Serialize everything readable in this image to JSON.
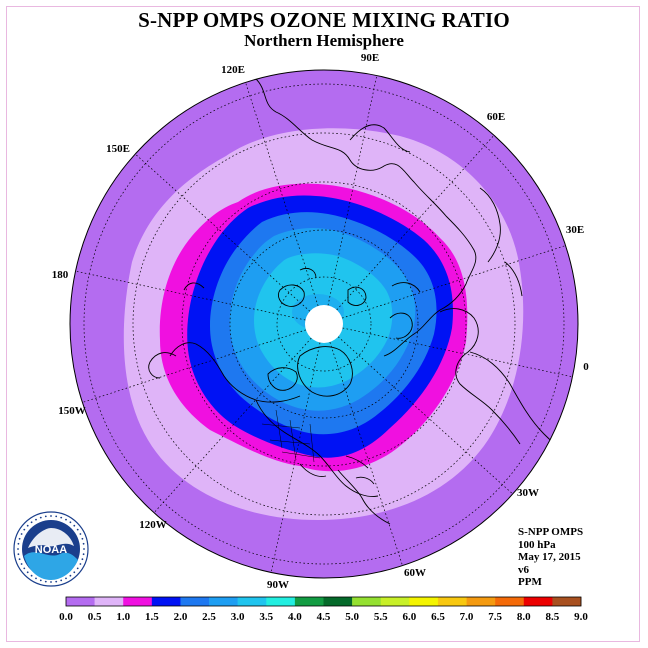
{
  "title": "S-NPP OMPS OZONE MIXING RATIO",
  "subtitle": "Northern Hemisphere",
  "meridian_labels": [
    "90E",
    "60E",
    "30E",
    "0",
    "30W",
    "60W",
    "90W",
    "120W",
    "150W",
    "180",
    "150E",
    "120E"
  ],
  "info": {
    "instrument": "S-NPP OMPS",
    "level": "100 hPa",
    "date": "May 17, 2015",
    "version": "v6",
    "units": "PPM"
  },
  "colorbar": {
    "ticks": [
      "0.0",
      "0.5",
      "1.0",
      "1.5",
      "2.0",
      "2.5",
      "3.0",
      "3.5",
      "4.0",
      "4.5",
      "5.0",
      "5.5",
      "6.0",
      "6.5",
      "7.0",
      "7.5",
      "8.0",
      "8.5",
      "9.0"
    ],
    "colors": [
      "#b46cf0",
      "#dfb4f8",
      "#f010e0",
      "#0012f4",
      "#1e78f0",
      "#1e9ef2",
      "#20c4ee",
      "#22eee0",
      "#129c42",
      "#056a2a",
      "#94e030",
      "#c8f028",
      "#f4f400",
      "#f8c810",
      "#f49a10",
      "#f46a08",
      "#ec0000",
      "#a85020"
    ]
  },
  "logo": {
    "text": "NOAA",
    "ring_text": "NATIONAL OCEANIC AND ATMOSPHERIC ADMINISTRATION · U.S. DEPARTMENT OF COMMERCE"
  },
  "colors": {
    "band_0_0_5": "#b46cf0",
    "band_0_5_1_0": "#dfb4f8",
    "band_1_0_1_5": "#f010e0",
    "band_1_5_2_0": "#0012f4",
    "band_2_0_2_5": "#1e78f0",
    "band_2_5_3_0": "#1e9ef2",
    "band_3_0_3_5": "#20c4ee",
    "missing": "#ffffff"
  }
}
